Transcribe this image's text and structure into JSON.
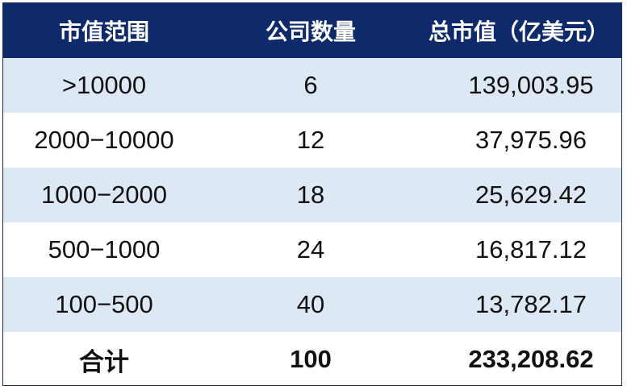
{
  "table": {
    "headers": [
      "市值范围",
      "公司数量",
      "总市值（亿美元）"
    ],
    "rows": [
      {
        "range": ">10000",
        "count": "6",
        "total": "139,003.95"
      },
      {
        "range": "2000−10000",
        "count": "12",
        "total": "37,975.96"
      },
      {
        "range": "1000−2000",
        "count": "18",
        "total": "25,629.42"
      },
      {
        "range": "500−1000",
        "count": "24",
        "total": "16,817.12"
      },
      {
        "range": "100−500",
        "count": "40",
        "total": "13,782.17"
      }
    ],
    "summary": {
      "range": "合计",
      "count": "100",
      "total": "233,208.62"
    },
    "colors": {
      "header_bg": "#0e2a6b",
      "header_text": "#ffffff",
      "stripe": "#dde8f5",
      "row": "#ffffff"
    }
  }
}
